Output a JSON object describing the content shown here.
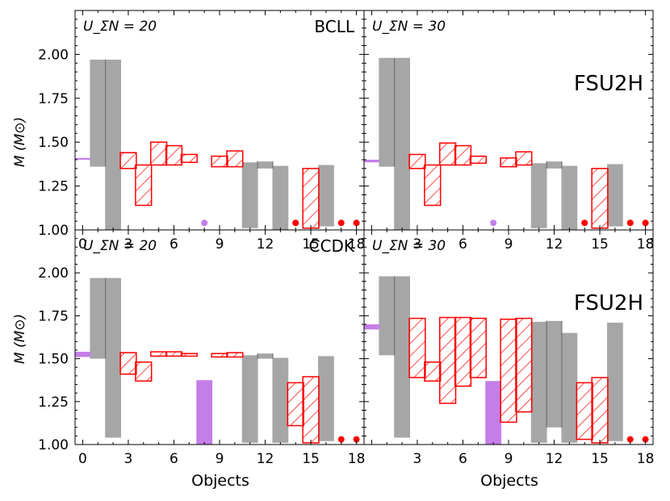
{
  "figure": {
    "xlabel": "Objects",
    "ylabel": "M (M⊙)",
    "ylabel_main": "M",
    "ylabel_unit": "(M⊙)"
  },
  "chart_data": [
    {
      "type": "bar",
      "panel": "top-left",
      "title": "",
      "label_left": "U_ΣN = 20",
      "label_right": "BCLL",
      "xlim": [
        -0.5,
        18.5
      ],
      "ylim": [
        1.0,
        2.25
      ],
      "xticks": [
        "0",
        "3",
        "6",
        "9",
        "12",
        "15",
        "18"
      ],
      "yticks": [
        "1.00",
        "1.25",
        "1.50",
        "1.75",
        "2.00"
      ],
      "series": [
        {
          "name": "gray",
          "bars": [
            [
              1,
              1.36,
              1.97
            ],
            [
              2,
              1.0,
              1.97
            ],
            [
              11,
              1.01,
              1.385
            ],
            [
              12,
              1.35,
              1.39
            ],
            [
              13,
              1.0,
              1.365
            ],
            [
              16,
              1.02,
              1.37
            ]
          ]
        },
        {
          "name": "red-hatched",
          "bars": [
            [
              3,
              1.35,
              1.44
            ],
            [
              4,
              1.14,
              1.37
            ],
            [
              5,
              1.37,
              1.5
            ],
            [
              6,
              1.37,
              1.48
            ],
            [
              7,
              1.385,
              1.43
            ],
            [
              9,
              1.36,
              1.42
            ],
            [
              10,
              1.36,
              1.45
            ],
            [
              15,
              1.01,
              1.35
            ]
          ]
        },
        {
          "name": "purple",
          "bars": [
            [
              0,
              1.4,
              1.41
            ]
          ]
        },
        {
          "name": "purple-dot",
          "points": [
            [
              8,
              1.04
            ]
          ]
        },
        {
          "name": "red-dot",
          "points": [
            [
              14,
              1.04
            ],
            [
              17,
              1.04
            ],
            [
              18,
              1.04
            ]
          ]
        }
      ]
    },
    {
      "type": "bar",
      "panel": "top-right",
      "label_left": "U_ΣN = 30",
      "label_right": "FSU2H",
      "xlim": [
        -0.5,
        18.5
      ],
      "ylim": [
        1.0,
        2.25
      ],
      "xticks": [
        "3",
        "6",
        "9",
        "12",
        "15",
        "18"
      ],
      "yticks": [],
      "series": [
        {
          "name": "gray",
          "bars": [
            [
              1,
              1.36,
              1.98
            ],
            [
              2,
              1.0,
              1.98
            ],
            [
              11,
              1.01,
              1.38
            ],
            [
              12,
              1.35,
              1.39
            ],
            [
              13,
              1.0,
              1.365
            ],
            [
              16,
              1.02,
              1.375
            ]
          ]
        },
        {
          "name": "red-hatched",
          "bars": [
            [
              3,
              1.35,
              1.43
            ],
            [
              4,
              1.14,
              1.37
            ],
            [
              5,
              1.37,
              1.495
            ],
            [
              6,
              1.37,
              1.48
            ],
            [
              7,
              1.38,
              1.42
            ],
            [
              9,
              1.36,
              1.41
            ],
            [
              10,
              1.37,
              1.445
            ],
            [
              15,
              1.01,
              1.35
            ]
          ]
        },
        {
          "name": "purple",
          "bars": [
            [
              0,
              1.385,
              1.4
            ]
          ]
        },
        {
          "name": "purple-dot",
          "points": [
            [
              8,
              1.04
            ]
          ]
        },
        {
          "name": "red-dot",
          "points": [
            [
              14,
              1.04
            ],
            [
              17,
              1.04
            ],
            [
              18,
              1.04
            ]
          ]
        }
      ]
    },
    {
      "type": "bar",
      "panel": "bottom-left",
      "label_left": "U_ΣN = 20",
      "label_right": "CCDK",
      "xlim": [
        -0.5,
        18.5
      ],
      "ylim": [
        1.0,
        2.25
      ],
      "xticks": [
        "0",
        "3",
        "6",
        "9",
        "12",
        "15",
        "18"
      ],
      "yticks": [
        "1.00",
        "1.25",
        "1.50",
        "1.75",
        "2.00"
      ],
      "series": [
        {
          "name": "gray",
          "bars": [
            [
              1,
              1.5,
              1.97
            ],
            [
              2,
              1.04,
              1.97
            ],
            [
              11,
              1.01,
              1.52
            ],
            [
              12,
              1.5,
              1.53
            ],
            [
              13,
              1.01,
              1.505
            ],
            [
              16,
              1.02,
              1.515
            ]
          ]
        },
        {
          "name": "red-hatched",
          "bars": [
            [
              3,
              1.41,
              1.535
            ],
            [
              4,
              1.37,
              1.48
            ],
            [
              5,
              1.515,
              1.54
            ],
            [
              6,
              1.515,
              1.54
            ],
            [
              7,
              1.515,
              1.53
            ],
            [
              9,
              1.51,
              1.53
            ],
            [
              10,
              1.51,
              1.535
            ],
            [
              14,
              1.11,
              1.36
            ],
            [
              15,
              1.01,
              1.395
            ]
          ]
        },
        {
          "name": "purple",
          "bars": [
            [
              0,
              1.51,
              1.54
            ],
            [
              8,
              1.0,
              1.375
            ]
          ]
        },
        {
          "name": "red-dot",
          "points": [
            [
              17,
              1.03
            ],
            [
              18,
              1.03
            ]
          ]
        }
      ]
    },
    {
      "type": "bar",
      "panel": "bottom-right",
      "label_left": "U_ΣN = 30",
      "label_right": "FSU2H",
      "xlim": [
        -0.5,
        18.5
      ],
      "ylim": [
        1.0,
        2.25
      ],
      "xticks": [
        "3",
        "6",
        "9",
        "12",
        "15",
        "18"
      ],
      "yticks": [],
      "series": [
        {
          "name": "gray",
          "bars": [
            [
              1,
              1.52,
              1.98
            ],
            [
              2,
              1.04,
              1.98
            ],
            [
              11,
              1.01,
              1.715
            ],
            [
              12,
              1.1,
              1.72
            ],
            [
              13,
              1.01,
              1.65
            ],
            [
              16,
              1.02,
              1.71
            ]
          ]
        },
        {
          "name": "red-hatched",
          "bars": [
            [
              3,
              1.39,
              1.735
            ],
            [
              4,
              1.37,
              1.48
            ],
            [
              5,
              1.24,
              1.74
            ],
            [
              6,
              1.34,
              1.74
            ],
            [
              7,
              1.39,
              1.735
            ],
            [
              9,
              1.13,
              1.73
            ],
            [
              10,
              1.19,
              1.735
            ],
            [
              14,
              1.03,
              1.36
            ],
            [
              15,
              1.01,
              1.39
            ]
          ]
        },
        {
          "name": "purple",
          "bars": [
            [
              0,
              1.67,
              1.7
            ],
            [
              8,
              1.0,
              1.37
            ]
          ]
        },
        {
          "name": "red-dot",
          "points": [
            [
              17,
              1.03
            ],
            [
              18,
              1.03
            ]
          ]
        }
      ]
    }
  ]
}
